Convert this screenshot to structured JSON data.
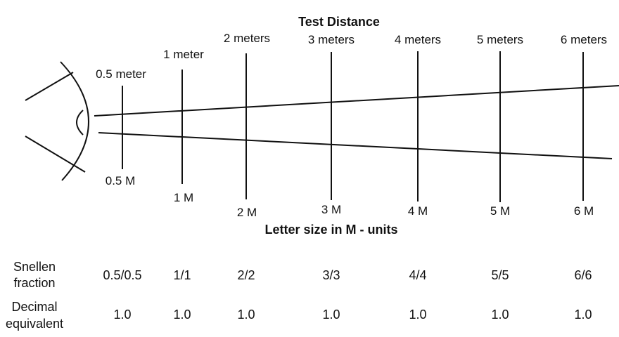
{
  "top_title": "Test Distance",
  "bottom_title": "Letter size in M - units",
  "distances": [
    {
      "distance_label": "0.5 meter",
      "size_label": "0.5 M",
      "snellen": "0.5/0.5",
      "decimal": "1.0"
    },
    {
      "distance_label": "1 meter",
      "size_label": "1 M",
      "snellen": "1/1",
      "decimal": "1.0"
    },
    {
      "distance_label": "2 meters",
      "size_label": "2 M",
      "snellen": "2/2",
      "decimal": "1.0"
    },
    {
      "distance_label": "3 meters",
      "size_label": "3 M",
      "snellen": "3/3",
      "decimal": "1.0"
    },
    {
      "distance_label": "4 meters",
      "size_label": "4 M",
      "snellen": "4/4",
      "decimal": "1.0"
    },
    {
      "distance_label": "5 meters",
      "size_label": "5 M",
      "snellen": "5/5",
      "decimal": "1.0"
    },
    {
      "distance_label": "6 meters",
      "size_label": "6 M",
      "snellen": "6/6",
      "decimal": "1.0"
    }
  ],
  "rows": {
    "snellen_label": [
      "Snellen",
      "fraction"
    ],
    "decimal_label": [
      "Decimal",
      "equivalent"
    ]
  }
}
